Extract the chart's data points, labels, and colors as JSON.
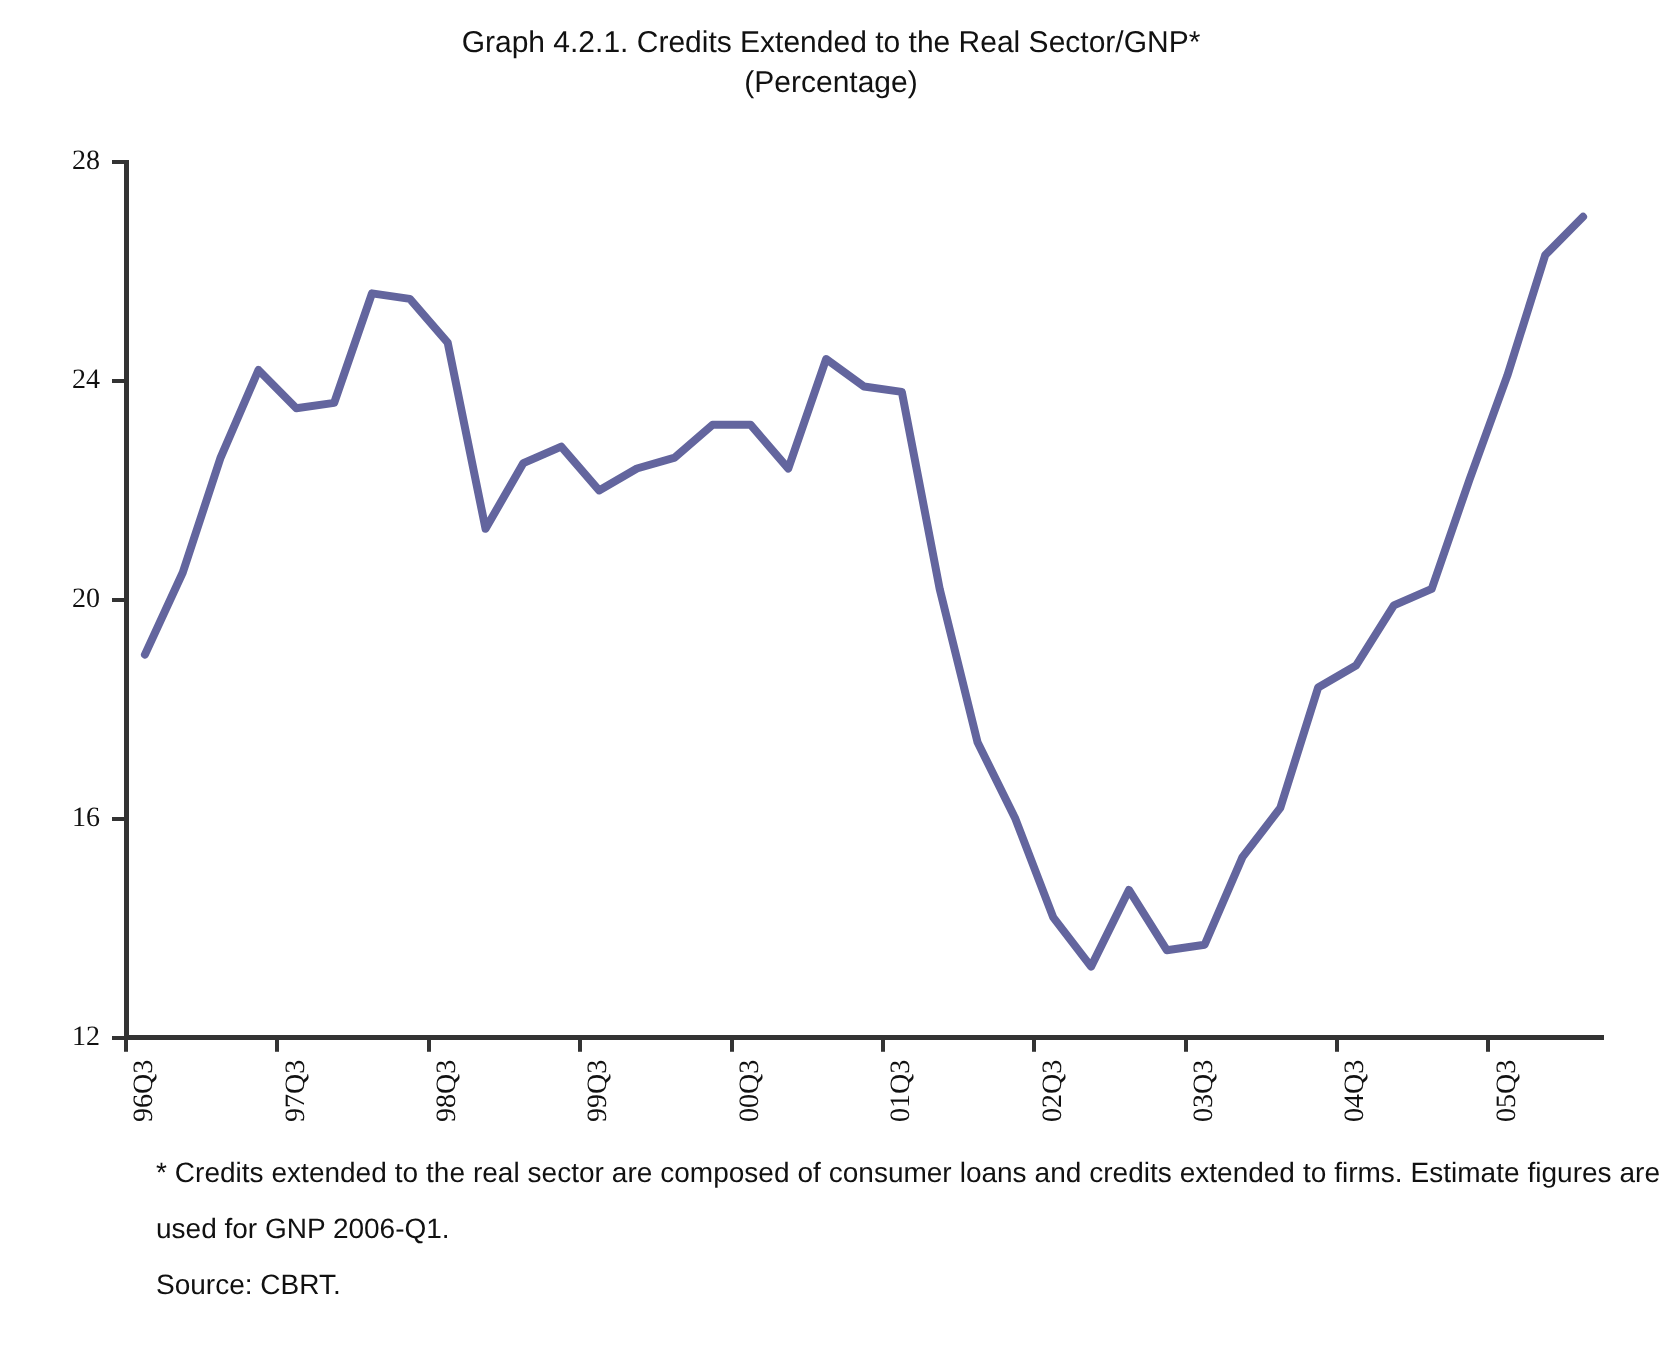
{
  "chart_data": {
    "type": "line",
    "title": "Graph 4.2.1. Credits Extended to the Real Sector/GNP*",
    "subtitle": "(Percentage)",
    "categories": [
      "96Q3",
      null,
      null,
      null,
      "97Q3",
      null,
      null,
      null,
      "98Q3",
      null,
      null,
      null,
      "99Q3",
      null,
      null,
      null,
      "00Q3",
      null,
      null,
      null,
      "01Q3",
      null,
      null,
      null,
      "02Q3",
      null,
      null,
      null,
      "03Q3",
      null,
      null,
      null,
      "04Q3",
      null,
      null,
      null,
      "05Q3",
      null,
      null
    ],
    "series": [
      {
        "color": "#63659e",
        "values": [
          19.0,
          20.5,
          22.6,
          24.2,
          23.5,
          23.6,
          25.6,
          25.5,
          24.7,
          21.3,
          22.5,
          22.8,
          22.0,
          22.4,
          22.6,
          23.2,
          23.2,
          22.4,
          24.4,
          23.9,
          23.8,
          20.2,
          17.4,
          16.0,
          14.2,
          13.3,
          14.7,
          13.6,
          13.7,
          15.3,
          16.2,
          18.4,
          18.8,
          19.9,
          20.2,
          22.2,
          24.1,
          26.3,
          27.0
        ]
      }
    ],
    "ylim": [
      12,
      28
    ],
    "yticks": [
      12,
      16,
      20,
      24,
      28
    ],
    "grid": false,
    "legend": false,
    "marker": "none",
    "line_style": "solid",
    "annotations": [
      "* Credits extended to the real sector are composed of consumer loans and credits extended to firms. Estimate figures are used for GNP 2006-Q1.",
      "Source: CBRT."
    ]
  }
}
